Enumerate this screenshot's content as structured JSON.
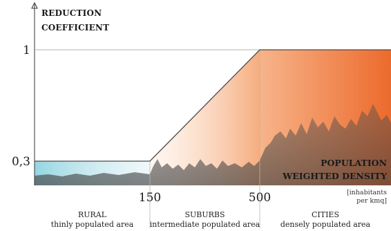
{
  "chart_data": {
    "type": "line",
    "ylabel_lines": [
      "REDUCTION",
      "COEFFICIENT"
    ],
    "xlabel_lines": [
      "POPULATION",
      "WEIGHTED DENSITY"
    ],
    "x_units_lines": [
      "[inhabitants",
      "per kmq]"
    ],
    "x": [
      0,
      150,
      500,
      1000
    ],
    "y": [
      0.3,
      0.3,
      1,
      1
    ],
    "x_ticks": [
      150,
      500
    ],
    "x_tick_labels": [
      "150",
      "500"
    ],
    "y_ticks": [
      0.3,
      1
    ],
    "y_tick_labels": [
      "0,3",
      "1"
    ],
    "regions": [
      {
        "name": "RURAL",
        "desc": "thinly populated area",
        "x_start": 0,
        "x_end": 150
      },
      {
        "name": "SUBURBS",
        "desc": "intermediate populated area",
        "x_start": 150,
        "x_end": 500
      },
      {
        "name": "CITIES",
        "desc": "densely populated area",
        "x_start": 500,
        "x_end": 1000
      }
    ],
    "colors": {
      "rural": "#8fd3e0",
      "suburbs": "#f5a877",
      "cities": "#ec6a2c",
      "line": "#4a4a4a",
      "skyline": "#5e5e5e"
    }
  }
}
